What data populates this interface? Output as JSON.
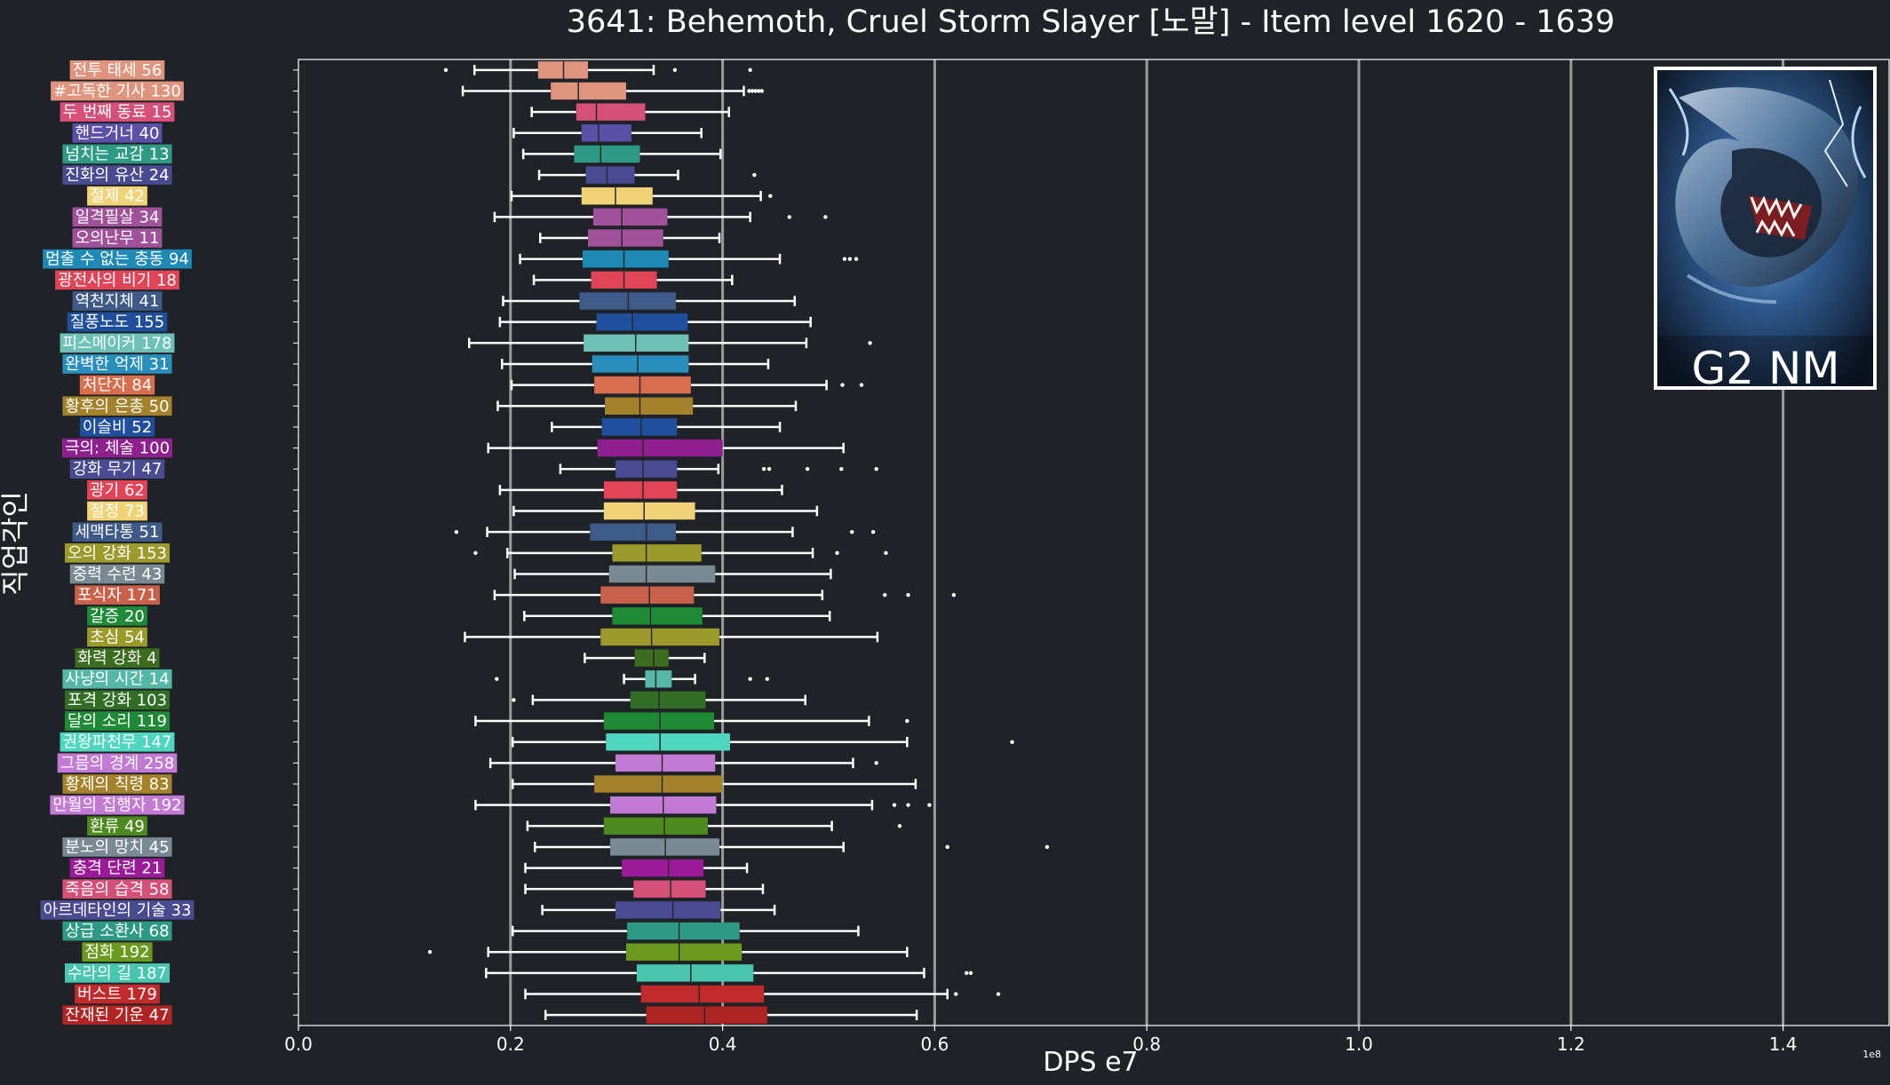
{
  "chart_data": {
    "type": "box",
    "orientation": "horizontal",
    "title": "3641: Behemoth, Cruel Storm Slayer [노말] - Item level 1620 - 1639",
    "xlabel": "DPS e7",
    "ylabel": "직업각인",
    "x_scale_label": "1e8",
    "xlim": [
      0.0,
      1.5
    ],
    "xticks": [
      0.0,
      0.2,
      0.4,
      0.6,
      0.8,
      1.0,
      1.2,
      1.4
    ],
    "xtick_labels": [
      "0.0",
      "0.2",
      "0.4",
      "0.6",
      "0.8",
      "1.0",
      "1.2",
      "1.4"
    ],
    "grid": "vertical",
    "badge": {
      "text": "G2 NM",
      "image": "behemoth-dragon-artwork"
    },
    "categories": [
      {
        "label": "전투 태세 56",
        "color": "#e0947e",
        "whislo": 0.166,
        "q1": 0.226,
        "med": 0.25,
        "q3": 0.273,
        "whishi": 0.335,
        "fliers": [
          0.139,
          0.355,
          0.426
        ]
      },
      {
        "label": "#고독한 기사 130",
        "color": "#e0947e",
        "whislo": 0.155,
        "q1": 0.238,
        "med": 0.264,
        "q3": 0.309,
        "whishi": 0.42,
        "fliers": [
          0.425,
          0.428,
          0.431,
          0.434,
          0.437
        ]
      },
      {
        "label": "두 번째 동료 15",
        "color": "#d45079",
        "whislo": 0.22,
        "q1": 0.262,
        "med": 0.281,
        "q3": 0.327,
        "whishi": 0.406,
        "fliers": []
      },
      {
        "label": "핸드거너 40",
        "color": "#5b4fa8",
        "whislo": 0.203,
        "q1": 0.267,
        "med": 0.283,
        "q3": 0.314,
        "whishi": 0.38,
        "fliers": []
      },
      {
        "label": "넘치는 교감 13",
        "color": "#2e9a83",
        "whislo": 0.212,
        "q1": 0.26,
        "med": 0.285,
        "q3": 0.322,
        "whishi": 0.398,
        "fliers": []
      },
      {
        "label": "진화의 유산 24",
        "color": "#4a4a92",
        "whislo": 0.227,
        "q1": 0.271,
        "med": 0.291,
        "q3": 0.317,
        "whishi": 0.358,
        "fliers": [
          0.43
        ]
      },
      {
        "label": "절제 42",
        "color": "#f0d277",
        "whislo": 0.201,
        "q1": 0.267,
        "med": 0.299,
        "q3": 0.334,
        "whishi": 0.436,
        "fliers": [
          0.445
        ]
      },
      {
        "label": "일격필살 34",
        "color": "#a0519a",
        "whislo": 0.185,
        "q1": 0.278,
        "med": 0.305,
        "q3": 0.348,
        "whishi": 0.426,
        "fliers": [
          0.463,
          0.497
        ]
      },
      {
        "label": "오의난무 11",
        "color": "#a0519a",
        "whislo": 0.228,
        "q1": 0.273,
        "med": 0.305,
        "q3": 0.344,
        "whishi": 0.397,
        "fliers": []
      },
      {
        "label": "멈출 수 없는 충동 94",
        "color": "#1e89b4",
        "whislo": 0.209,
        "q1": 0.268,
        "med": 0.307,
        "q3": 0.349,
        "whishi": 0.454,
        "fliers": [
          0.515,
          0.52,
          0.526
        ]
      },
      {
        "label": "광전사의 비기 18",
        "color": "#e04456",
        "whislo": 0.222,
        "q1": 0.276,
        "med": 0.307,
        "q3": 0.338,
        "whishi": 0.409,
        "fliers": []
      },
      {
        "label": "역천지체 41",
        "color": "#3e5a88",
        "whislo": 0.193,
        "q1": 0.265,
        "med": 0.311,
        "q3": 0.356,
        "whishi": 0.468,
        "fliers": []
      },
      {
        "label": "질풍노도 155",
        "color": "#1f4f9c",
        "whislo": 0.19,
        "q1": 0.281,
        "med": 0.315,
        "q3": 0.367,
        "whishi": 0.483,
        "fliers": []
      },
      {
        "label": "피스메이커 178",
        "color": "#6ec1b6",
        "whislo": 0.161,
        "q1": 0.269,
        "med": 0.318,
        "q3": 0.368,
        "whishi": 0.479,
        "fliers": [
          0.539
        ]
      },
      {
        "label": "완벽한 억제 31",
        "color": "#2a8ebc",
        "whislo": 0.192,
        "q1": 0.277,
        "med": 0.32,
        "q3": 0.368,
        "whishi": 0.443,
        "fliers": []
      },
      {
        "label": "처단자 84",
        "color": "#d86e4e",
        "whislo": 0.201,
        "q1": 0.279,
        "med": 0.322,
        "q3": 0.37,
        "whishi": 0.498,
        "fliers": [
          0.513,
          0.531
        ]
      },
      {
        "label": "황후의 은총 50",
        "color": "#a4822c",
        "whislo": 0.188,
        "q1": 0.289,
        "med": 0.322,
        "q3": 0.372,
        "whishi": 0.469,
        "fliers": []
      },
      {
        "label": "이슬비 52",
        "color": "#1f4f9c",
        "whislo": 0.239,
        "q1": 0.286,
        "med": 0.323,
        "q3": 0.357,
        "whishi": 0.454,
        "fliers": []
      },
      {
        "label": "극의: 체술 100",
        "color": "#8e1f8e",
        "whislo": 0.179,
        "q1": 0.282,
        "med": 0.325,
        "q3": 0.4,
        "whishi": 0.514,
        "fliers": []
      },
      {
        "label": "강화 무기 47",
        "color": "#4a4a92",
        "whislo": 0.247,
        "q1": 0.299,
        "med": 0.325,
        "q3": 0.357,
        "whishi": 0.396,
        "fliers": [
          0.439,
          0.444,
          0.48,
          0.512,
          0.545
        ]
      },
      {
        "label": "광기 62",
        "color": "#e04456",
        "whislo": 0.19,
        "q1": 0.288,
        "med": 0.325,
        "q3": 0.357,
        "whishi": 0.456,
        "fliers": []
      },
      {
        "label": "절정 73",
        "color": "#f0d277",
        "whislo": 0.203,
        "q1": 0.288,
        "med": 0.326,
        "q3": 0.374,
        "whishi": 0.489,
        "fliers": []
      },
      {
        "label": "세맥타통 51",
        "color": "#3e5a88",
        "whislo": 0.178,
        "q1": 0.275,
        "med": 0.328,
        "q3": 0.356,
        "whishi": 0.466,
        "fliers": [
          0.149,
          0.522,
          0.542
        ]
      },
      {
        "label": "오의 강화 153",
        "color": "#9c9a2a",
        "whislo": 0.197,
        "q1": 0.296,
        "med": 0.328,
        "q3": 0.38,
        "whishi": 0.485,
        "fliers": [
          0.167,
          0.508,
          0.554
        ]
      },
      {
        "label": "중력 수련 43",
        "color": "#7a8a92",
        "whislo": 0.204,
        "q1": 0.293,
        "med": 0.328,
        "q3": 0.393,
        "whishi": 0.502,
        "fliers": []
      },
      {
        "label": "포식자 171",
        "color": "#c8604a",
        "whislo": 0.185,
        "q1": 0.285,
        "med": 0.331,
        "q3": 0.373,
        "whishi": 0.494,
        "fliers": [
          0.553,
          0.575,
          0.618
        ]
      },
      {
        "label": "갈증 20",
        "color": "#1f8a36",
        "whislo": 0.213,
        "q1": 0.296,
        "med": 0.332,
        "q3": 0.381,
        "whishi": 0.501,
        "fliers": []
      },
      {
        "label": "초심 54",
        "color": "#9c9a2a",
        "whislo": 0.157,
        "q1": 0.285,
        "med": 0.333,
        "q3": 0.397,
        "whishi": 0.546,
        "fliers": []
      },
      {
        "label": "화력 강화 4",
        "color": "#3a6e1e",
        "whislo": 0.27,
        "q1": 0.317,
        "med": 0.335,
        "q3": 0.349,
        "whishi": 0.383,
        "fliers": []
      },
      {
        "label": "사냥의 시간 14",
        "color": "#55b8a6",
        "whislo": 0.307,
        "q1": 0.327,
        "med": 0.337,
        "q3": 0.352,
        "whishi": 0.374,
        "fliers": [
          0.187,
          0.426,
          0.442
        ]
      },
      {
        "label": "포격 강화 103",
        "color": "#2f6e24",
        "whislo": 0.221,
        "q1": 0.313,
        "med": 0.34,
        "q3": 0.384,
        "whishi": 0.478,
        "fliers": [
          0.203
        ]
      },
      {
        "label": "달의 소리 119",
        "color": "#1f8a36",
        "whislo": 0.167,
        "q1": 0.288,
        "med": 0.341,
        "q3": 0.392,
        "whishi": 0.538,
        "fliers": [
          0.574
        ]
      },
      {
        "label": "권왕파천무 147",
        "color": "#4fd6bf",
        "whislo": 0.202,
        "q1": 0.29,
        "med": 0.341,
        "q3": 0.407,
        "whishi": 0.574,
        "fliers": [
          0.673
        ]
      },
      {
        "label": "그믐의 경계 258",
        "color": "#c37ad4",
        "whislo": 0.181,
        "q1": 0.299,
        "med": 0.343,
        "q3": 0.393,
        "whishi": 0.523,
        "fliers": [
          0.545
        ]
      },
      {
        "label": "황제의 칙령 83",
        "color": "#a4822c",
        "whislo": 0.202,
        "q1": 0.279,
        "med": 0.343,
        "q3": 0.4,
        "whishi": 0.582,
        "fliers": []
      },
      {
        "label": "만월의 집행자 192",
        "color": "#c37ad4",
        "whislo": 0.167,
        "q1": 0.294,
        "med": 0.344,
        "q3": 0.394,
        "whishi": 0.541,
        "fliers": [
          0.562,
          0.575,
          0.595
        ]
      },
      {
        "label": "환류 49",
        "color": "#4c8a1e",
        "whislo": 0.216,
        "q1": 0.288,
        "med": 0.345,
        "q3": 0.386,
        "whishi": 0.503,
        "fliers": [
          0.567
        ]
      },
      {
        "label": "분노의 망치 45",
        "color": "#7a8a92",
        "whislo": 0.223,
        "q1": 0.294,
        "med": 0.346,
        "q3": 0.397,
        "whishi": 0.514,
        "fliers": [
          0.612,
          0.706
        ]
      },
      {
        "label": "충격 단련 21",
        "color": "#9a1a9a",
        "whislo": 0.214,
        "q1": 0.305,
        "med": 0.349,
        "q3": 0.382,
        "whishi": 0.423,
        "fliers": []
      },
      {
        "label": "죽음의 습격 58",
        "color": "#d45079",
        "whislo": 0.214,
        "q1": 0.316,
        "med": 0.351,
        "q3": 0.384,
        "whishi": 0.438,
        "fliers": []
      },
      {
        "label": "아르데타인의 기술 33",
        "color": "#4a4a92",
        "whislo": 0.23,
        "q1": 0.299,
        "med": 0.353,
        "q3": 0.398,
        "whishi": 0.449,
        "fliers": []
      },
      {
        "label": "상급 소환사 68",
        "color": "#2e9a83",
        "whislo": 0.202,
        "q1": 0.31,
        "med": 0.359,
        "q3": 0.416,
        "whishi": 0.528,
        "fliers": []
      },
      {
        "label": "점화 192",
        "color": "#6a9a1e",
        "whislo": 0.179,
        "q1": 0.309,
        "med": 0.359,
        "q3": 0.418,
        "whishi": 0.574,
        "fliers": [
          0.124
        ]
      },
      {
        "label": "수라의 길 187",
        "color": "#4ac6b0",
        "whislo": 0.177,
        "q1": 0.319,
        "med": 0.37,
        "q3": 0.429,
        "whishi": 0.59,
        "fliers": [
          0.63,
          0.634
        ]
      },
      {
        "label": "버스트 179",
        "color": "#c02a2a",
        "whislo": 0.214,
        "q1": 0.323,
        "med": 0.378,
        "q3": 0.439,
        "whishi": 0.612,
        "fliers": [
          0.62,
          0.66
        ]
      },
      {
        "label": "잔재된 기운 47",
        "color": "#b02424",
        "whislo": 0.233,
        "q1": 0.328,
        "med": 0.383,
        "q3": 0.442,
        "whishi": 0.583,
        "fliers": []
      }
    ]
  }
}
